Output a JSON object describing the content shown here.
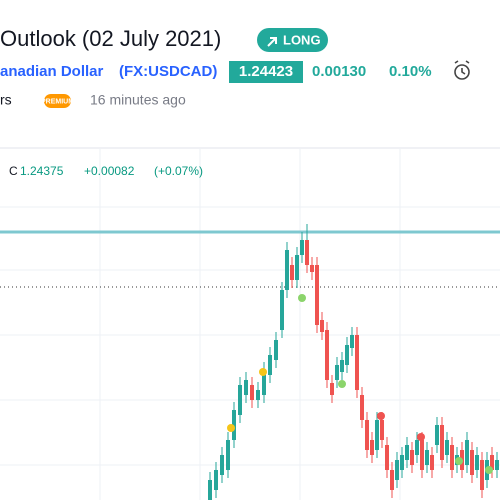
{
  "header": {
    "title": "Outlook (02 July 2021)",
    "badge": "LONG",
    "symbol_name": "anadian Dollar",
    "symbol_code": "(FX:USDCAD)",
    "price": "1.24423",
    "change": "0.00130",
    "change_percent": "0.10%",
    "author": "rs",
    "author_badge": "PREMIUM",
    "time": "16 minutes ago"
  },
  "legend": {
    "label": "C",
    "close": "1.24375",
    "change": "+0.00082",
    "change_percent": "(+0.07%)"
  }
}
